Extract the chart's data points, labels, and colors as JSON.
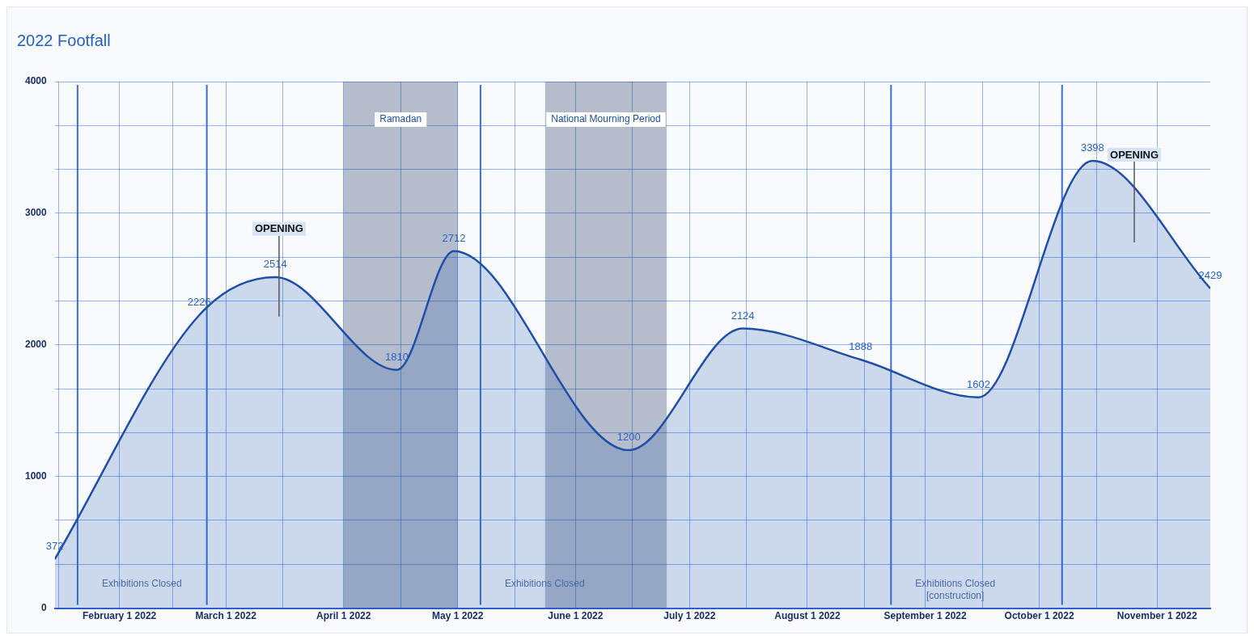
{
  "chart_data": {
    "type": "area",
    "title": "2022 Footfall",
    "x": [
      "2022-01-15",
      "2022-02-22",
      "2022-03-14",
      "2022-04-15",
      "2022-04-30",
      "2022-06-15",
      "2022-07-15",
      "2022-08-15",
      "2022-09-15",
      "2022-10-15",
      "2022-11-15"
    ],
    "series": [
      {
        "color": "#1f4fa8",
        "values": [
          372,
          2226,
          2514,
          1810,
          2712,
          1200,
          2124,
          1888,
          1602,
          3398,
          2429
        ]
      }
    ],
    "data_labels": true,
    "xlim": [
      "2022-01-15",
      "2022-11-15"
    ],
    "xticks": [
      {
        "value": "2022-01-16",
        "label": null
      },
      {
        "value": "2022-02-01",
        "label": "February 1 2022"
      },
      {
        "value": "2022-02-15",
        "label": null
      },
      {
        "value": "2022-03-01",
        "label": "March 1 2022"
      },
      {
        "value": "2022-03-16",
        "label": null
      },
      {
        "value": "2022-04-01",
        "label": "April 1 2022"
      },
      {
        "value": "2022-04-16",
        "label": null
      },
      {
        "value": "2022-05-01",
        "label": "May 1 2022"
      },
      {
        "value": "2022-05-16",
        "label": null
      },
      {
        "value": "2022-06-01",
        "label": "June 1 2022"
      },
      {
        "value": "2022-06-16",
        "label": null
      },
      {
        "value": "2022-07-01",
        "label": "July 1 2022"
      },
      {
        "value": "2022-07-16",
        "label": null
      },
      {
        "value": "2022-08-01",
        "label": "August 1 2022"
      },
      {
        "value": "2022-08-16",
        "label": null
      },
      {
        "value": "2022-09-01",
        "label": "September 1 2022"
      },
      {
        "value": "2022-09-16",
        "label": null
      },
      {
        "value": "2022-10-01",
        "label": "October 1 2022"
      },
      {
        "value": "2022-10-16",
        "label": null
      },
      {
        "value": "2022-11-01",
        "label": "November 1 2022"
      }
    ],
    "ylim": [
      0,
      4000
    ],
    "yticks": [
      0,
      {
        "value": 333,
        "label": null
      },
      {
        "value": 667,
        "label": null
      },
      1000,
      {
        "value": 1333,
        "label": null
      },
      {
        "value": 1667,
        "label": null
      },
      2000,
      {
        "value": 2333,
        "label": null
      },
      {
        "value": 2667,
        "label": null
      },
      3000,
      {
        "value": 3333,
        "label": null
      },
      {
        "value": 3667,
        "label": null
      },
      4000
    ],
    "grid": true,
    "bands": [
      {
        "axis": "x",
        "from": "2022-04-01",
        "to": "2022-05-01",
        "label": "Ramadan",
        "color": "#1c2d5c"
      },
      {
        "axis": "x",
        "from": "2022-05-24",
        "to": "2022-06-25",
        "label": "National Mourning Period",
        "color": "#1c2d5c"
      }
    ],
    "ref_lines": [
      {
        "axis": "x",
        "value": "2022-01-21",
        "label": "Exhibitions Closed",
        "color": "#3a6fd8",
        "line_style": "solid"
      },
      {
        "axis": "x",
        "value": "2022-02-24",
        "label": null,
        "color": "#3a6fd8",
        "line_style": "solid"
      },
      {
        "axis": "x",
        "value": "2022-05-07",
        "label": "Exhibitions Closed",
        "color": "#3a6fd8",
        "line_style": "solid"
      },
      {
        "axis": "x",
        "value": "2022-08-23",
        "label": "Exhibitions Closed\n[construction]",
        "color": "#3a6fd8",
        "line_style": "solid"
      },
      {
        "axis": "x",
        "value": "2022-10-07",
        "label": null,
        "color": "#3a6fd8",
        "line_style": "solid"
      },
      {
        "axis": "x",
        "value": "2022-03-15",
        "label": "OPENING",
        "color": "#555555"
      },
      {
        "axis": "x",
        "value": "2022-10-26",
        "label": "OPENING",
        "color": "#555555"
      }
    ]
  }
}
